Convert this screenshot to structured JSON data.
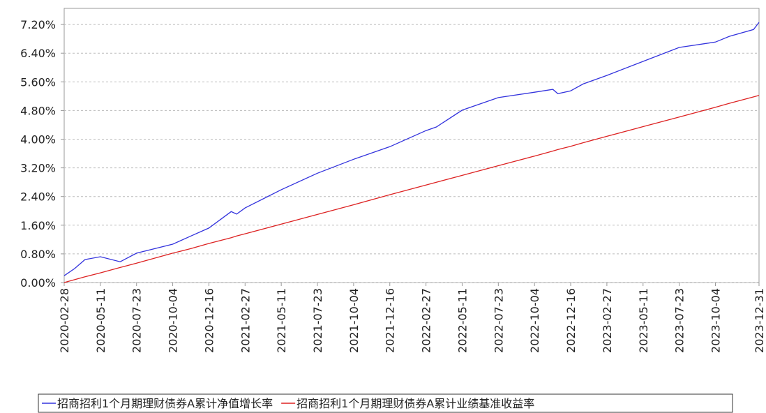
{
  "chart_data": {
    "type": "line",
    "x": [
      "2020-02-28",
      "2020-03-20",
      "2020-04-10",
      "2020-05-11",
      "2020-06-20",
      "2020-07-23",
      "2020-10-04",
      "2020-11-10",
      "2020-12-16",
      "2021-01-30",
      "2021-02-10",
      "2021-02-27",
      "2021-05-11",
      "2021-07-23",
      "2021-10-04",
      "2021-12-16",
      "2022-02-27",
      "2022-03-20",
      "2022-05-11",
      "2022-07-23",
      "2022-10-04",
      "2022-11-10",
      "2022-11-20",
      "2022-12-16",
      "2023-01-10",
      "2023-02-27",
      "2023-05-11",
      "2023-07-23",
      "2023-10-04",
      "2023-11-01",
      "2023-12-20",
      "2023-12-31"
    ],
    "series": [
      {
        "name": "招商招利1个月期理财债券A累计净值增长率",
        "color": "#3333dd",
        "values": [
          0.19,
          0.39,
          0.64,
          0.72,
          0.58,
          0.82,
          1.07,
          1.3,
          1.52,
          1.98,
          1.91,
          2.08,
          2.59,
          3.05,
          3.44,
          3.79,
          4.24,
          4.34,
          4.81,
          5.16,
          5.31,
          5.39,
          5.27,
          5.35,
          5.54,
          5.78,
          6.17,
          6.56,
          6.71,
          6.87,
          7.06,
          7.26
        ]
      },
      {
        "name": "招商招利1个月期理财债券A累计业绩基准收益率",
        "color": "#dd2222",
        "values": [
          0,
          0.08,
          0.16,
          0.27,
          0.42,
          0.54,
          0.82,
          0.95,
          1.09,
          1.25,
          1.3,
          1.36,
          1.63,
          1.9,
          2.17,
          2.45,
          2.72,
          2.8,
          2.99,
          3.26,
          3.53,
          3.67,
          3.71,
          3.8,
          3.9,
          4.08,
          4.35,
          4.62,
          4.89,
          5.0,
          5.18,
          5.22
        ]
      }
    ],
    "xlim": [
      "2020-02-28",
      "2023-12-31"
    ],
    "xticks": [
      "2020-02-28",
      "2020-05-11",
      "2020-07-23",
      "2020-10-04",
      "2020-12-16",
      "2021-02-27",
      "2021-05-11",
      "2021-07-23",
      "2021-10-04",
      "2021-12-16",
      "2022-02-27",
      "2022-05-11",
      "2022-07-23",
      "2022-10-04",
      "2022-12-16",
      "2023-02-27",
      "2023-05-11",
      "2023-07-23",
      "2023-10-04",
      "2023-12-31"
    ],
    "ylim": [
      0,
      7.65
    ],
    "yticks": [
      {
        "value": 0,
        "label": "0.00%"
      },
      {
        "value": 0.8,
        "label": "0.80%"
      },
      {
        "value": 1.6,
        "label": "1.60%"
      },
      {
        "value": 2.4,
        "label": "2.40%"
      },
      {
        "value": 3.2,
        "label": "3.20%"
      },
      {
        "value": 4.0,
        "label": "4.00%"
      },
      {
        "value": 4.8,
        "label": "4.80%"
      },
      {
        "value": 5.6,
        "label": "5.60%"
      },
      {
        "value": 6.4,
        "label": "6.40%"
      },
      {
        "value": 7.2,
        "label": "7.20%"
      }
    ],
    "grid": true,
    "legend": "bottom"
  }
}
